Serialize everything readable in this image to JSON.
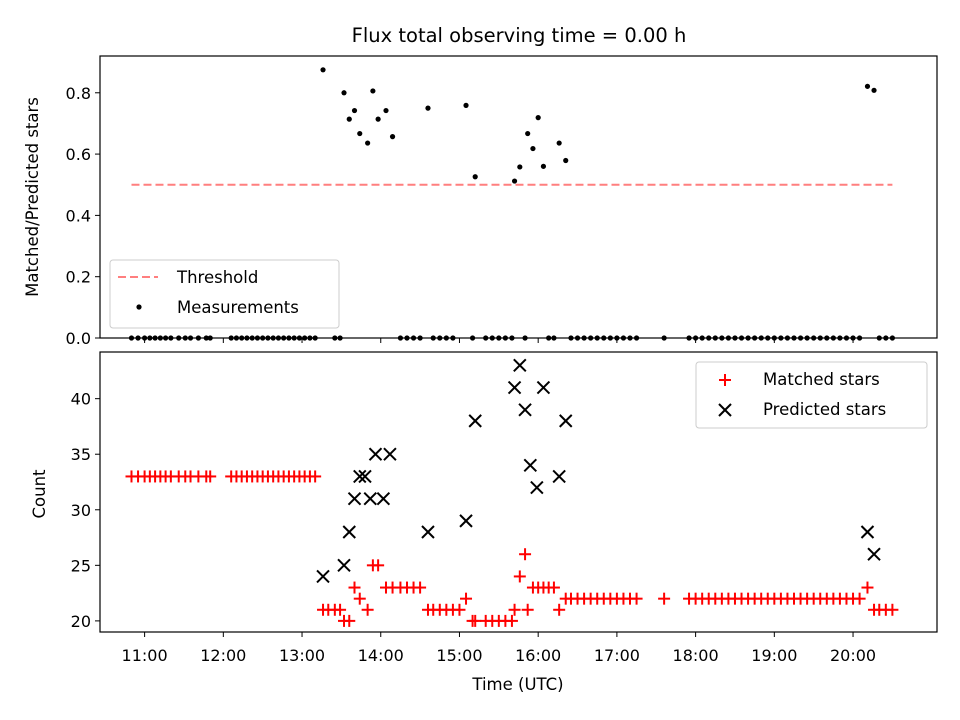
{
  "title": "Flux total observing time = 0.00 h",
  "chart_data": [
    {
      "type": "scatter",
      "panel": "top",
      "ylabel": "Matched/Predicted stars",
      "xlabel": "",
      "ylim": [
        0.0,
        0.92
      ],
      "xlim": [
        "10:26",
        "21:04"
      ],
      "yticks": [
        "0.0",
        "0.2",
        "0.4",
        "0.6",
        "0.8"
      ],
      "legend_position": "lower-left",
      "legend": [
        {
          "label": "Threshold",
          "color": "#ff7f7f",
          "marker": "dashed-line"
        },
        {
          "label": "Measurements",
          "color": "#000000",
          "marker": "dot"
        }
      ],
      "threshold": {
        "name": "Threshold",
        "y": 0.5,
        "x_from": "10:50",
        "x_to": "20:30",
        "color": "#ff7f7f"
      },
      "series": [
        {
          "name": "Measurements",
          "color": "#000000",
          "points": [
            [
              "10:50",
              0.0
            ],
            [
              "10:55",
              0.0
            ],
            [
              "11:00",
              0.0
            ],
            [
              "11:04",
              0.0
            ],
            [
              "11:08",
              0.0
            ],
            [
              "11:12",
              0.0
            ],
            [
              "11:16",
              0.0
            ],
            [
              "11:20",
              0.0
            ],
            [
              "11:26",
              0.0
            ],
            [
              "11:31",
              0.0
            ],
            [
              "11:35",
              0.0
            ],
            [
              "11:41",
              0.0
            ],
            [
              "11:47",
              0.0
            ],
            [
              "11:50",
              0.0
            ],
            [
              "12:06",
              0.0
            ],
            [
              "12:10",
              0.0
            ],
            [
              "12:14",
              0.0
            ],
            [
              "12:18",
              0.0
            ],
            [
              "12:22",
              0.0
            ],
            [
              "12:26",
              0.0
            ],
            [
              "12:30",
              0.0
            ],
            [
              "12:34",
              0.0
            ],
            [
              "12:38",
              0.0
            ],
            [
              "12:42",
              0.0
            ],
            [
              "12:46",
              0.0
            ],
            [
              "12:50",
              0.0
            ],
            [
              "12:54",
              0.0
            ],
            [
              "12:58",
              0.0
            ],
            [
              "13:02",
              0.0
            ],
            [
              "13:06",
              0.0
            ],
            [
              "13:10",
              0.0
            ],
            [
              "13:16",
              0.875
            ],
            [
              "13:25",
              0.0
            ],
            [
              "13:29",
              0.0
            ],
            [
              "13:32",
              0.8
            ],
            [
              "13:36",
              0.714
            ],
            [
              "13:40",
              0.742
            ],
            [
              "13:44",
              0.667
            ],
            [
              "13:50",
              0.636
            ],
            [
              "13:54",
              0.806
            ],
            [
              "13:58",
              0.714
            ],
            [
              "14:04",
              0.742
            ],
            [
              "14:09",
              0.657
            ],
            [
              "14:15",
              0.0
            ],
            [
              "14:20",
              0.0
            ],
            [
              "14:25",
              0.0
            ],
            [
              "14:30",
              0.0
            ],
            [
              "14:36",
              0.75
            ],
            [
              "14:40",
              0.0
            ],
            [
              "14:45",
              0.0
            ],
            [
              "14:50",
              0.0
            ],
            [
              "14:55",
              0.0
            ],
            [
              "15:05",
              0.759
            ],
            [
              "15:10",
              0.0
            ],
            [
              "15:12",
              0.526
            ],
            [
              "15:20",
              0.0
            ],
            [
              "15:25",
              0.0
            ],
            [
              "15:30",
              0.0
            ],
            [
              "15:35",
              0.0
            ],
            [
              "15:40",
              0.0
            ],
            [
              "15:42",
              0.512
            ],
            [
              "15:46",
              0.558
            ],
            [
              "15:50",
              0.0
            ],
            [
              "15:52",
              0.667
            ],
            [
              "15:56",
              0.618
            ],
            [
              "16:00",
              0.719
            ],
            [
              "16:04",
              0.56
            ],
            [
              "16:08",
              0.0
            ],
            [
              "16:12",
              0.0
            ],
            [
              "16:16",
              0.636
            ],
            [
              "16:21",
              0.579
            ],
            [
              "16:25",
              0.0
            ],
            [
              "16:30",
              0.0
            ],
            [
              "16:35",
              0.0
            ],
            [
              "16:40",
              0.0
            ],
            [
              "16:45",
              0.0
            ],
            [
              "16:50",
              0.0
            ],
            [
              "16:55",
              0.0
            ],
            [
              "17:00",
              0.0
            ],
            [
              "17:05",
              0.0
            ],
            [
              "17:10",
              0.0
            ],
            [
              "17:15",
              0.0
            ],
            [
              "17:36",
              0.0
            ],
            [
              "17:55",
              0.0
            ],
            [
              "18:00",
              0.0
            ],
            [
              "18:05",
              0.0
            ],
            [
              "18:10",
              0.0
            ],
            [
              "18:15",
              0.0
            ],
            [
              "18:20",
              0.0
            ],
            [
              "18:25",
              0.0
            ],
            [
              "18:30",
              0.0
            ],
            [
              "18:35",
              0.0
            ],
            [
              "18:40",
              0.0
            ],
            [
              "18:45",
              0.0
            ],
            [
              "18:50",
              0.0
            ],
            [
              "18:55",
              0.0
            ],
            [
              "19:00",
              0.0
            ],
            [
              "19:05",
              0.0
            ],
            [
              "19:10",
              0.0
            ],
            [
              "19:15",
              0.0
            ],
            [
              "19:20",
              0.0
            ],
            [
              "19:25",
              0.0
            ],
            [
              "19:30",
              0.0
            ],
            [
              "19:35",
              0.0
            ],
            [
              "19:40",
              0.0
            ],
            [
              "19:45",
              0.0
            ],
            [
              "19:50",
              0.0
            ],
            [
              "19:55",
              0.0
            ],
            [
              "20:00",
              0.0
            ],
            [
              "20:05",
              0.0
            ],
            [
              "20:11",
              0.821
            ],
            [
              "20:16",
              0.808
            ],
            [
              "20:20",
              0.0
            ],
            [
              "20:25",
              0.0
            ],
            [
              "20:30",
              0.0
            ]
          ]
        }
      ]
    },
    {
      "type": "scatter",
      "panel": "bottom",
      "ylabel": "Count",
      "xlabel": "Time (UTC)",
      "ylim": [
        19,
        44.2
      ],
      "xlim": [
        "10:26",
        "21:04"
      ],
      "yticks": [
        "20",
        "25",
        "30",
        "35",
        "40"
      ],
      "xticks": [
        "11:00",
        "12:00",
        "13:00",
        "14:00",
        "15:00",
        "16:00",
        "17:00",
        "18:00",
        "19:00",
        "20:00"
      ],
      "legend_position": "top-right",
      "legend": [
        {
          "label": "Matched stars",
          "color": "#ff0000",
          "marker": "plus"
        },
        {
          "label": "Predicted stars",
          "color": "#000000",
          "marker": "x"
        }
      ],
      "series": [
        {
          "name": "Matched stars",
          "color": "#ff0000",
          "points": [
            [
              "10:50",
              33
            ],
            [
              "10:55",
              33
            ],
            [
              "11:00",
              33
            ],
            [
              "11:04",
              33
            ],
            [
              "11:08",
              33
            ],
            [
              "11:12",
              33
            ],
            [
              "11:16",
              33
            ],
            [
              "11:20",
              33
            ],
            [
              "11:26",
              33
            ],
            [
              "11:31",
              33
            ],
            [
              "11:35",
              33
            ],
            [
              "11:41",
              33
            ],
            [
              "11:47",
              33
            ],
            [
              "11:50",
              33
            ],
            [
              "12:06",
              33
            ],
            [
              "12:10",
              33
            ],
            [
              "12:14",
              33
            ],
            [
              "12:18",
              33
            ],
            [
              "12:22",
              33
            ],
            [
              "12:26",
              33
            ],
            [
              "12:30",
              33
            ],
            [
              "12:34",
              33
            ],
            [
              "12:38",
              33
            ],
            [
              "12:42",
              33
            ],
            [
              "12:46",
              33
            ],
            [
              "12:50",
              33
            ],
            [
              "12:54",
              33
            ],
            [
              "12:58",
              33
            ],
            [
              "13:02",
              33
            ],
            [
              "13:06",
              33
            ],
            [
              "13:10",
              33
            ],
            [
              "13:16",
              21
            ],
            [
              "13:20",
              21
            ],
            [
              "13:25",
              21
            ],
            [
              "13:29",
              21
            ],
            [
              "13:32",
              20
            ],
            [
              "13:36",
              20
            ],
            [
              "13:40",
              23
            ],
            [
              "13:44",
              22
            ],
            [
              "13:50",
              21
            ],
            [
              "13:54",
              25
            ],
            [
              "13:58",
              25
            ],
            [
              "14:04",
              23
            ],
            [
              "14:09",
              23
            ],
            [
              "14:15",
              23
            ],
            [
              "14:20",
              23
            ],
            [
              "14:25",
              23
            ],
            [
              "14:30",
              23
            ],
            [
              "14:36",
              21
            ],
            [
              "14:40",
              21
            ],
            [
              "14:45",
              21
            ],
            [
              "14:50",
              21
            ],
            [
              "14:55",
              21
            ],
            [
              "15:00",
              21
            ],
            [
              "15:05",
              22
            ],
            [
              "15:10",
              20
            ],
            [
              "15:12",
              20
            ],
            [
              "15:20",
              20
            ],
            [
              "15:25",
              20
            ],
            [
              "15:30",
              20
            ],
            [
              "15:35",
              20
            ],
            [
              "15:40",
              20
            ],
            [
              "15:42",
              21
            ],
            [
              "15:46",
              24
            ],
            [
              "15:50",
              26
            ],
            [
              "15:52",
              21
            ],
            [
              "15:56",
              23
            ],
            [
              "16:00",
              23
            ],
            [
              "16:04",
              23
            ],
            [
              "16:08",
              23
            ],
            [
              "16:12",
              23
            ],
            [
              "16:16",
              21
            ],
            [
              "16:21",
              22
            ],
            [
              "16:25",
              22
            ],
            [
              "16:30",
              22
            ],
            [
              "16:35",
              22
            ],
            [
              "16:40",
              22
            ],
            [
              "16:45",
              22
            ],
            [
              "16:50",
              22
            ],
            [
              "16:55",
              22
            ],
            [
              "17:00",
              22
            ],
            [
              "17:05",
              22
            ],
            [
              "17:10",
              22
            ],
            [
              "17:15",
              22
            ],
            [
              "17:36",
              22
            ],
            [
              "17:55",
              22
            ],
            [
              "18:00",
              22
            ],
            [
              "18:05",
              22
            ],
            [
              "18:10",
              22
            ],
            [
              "18:15",
              22
            ],
            [
              "18:20",
              22
            ],
            [
              "18:25",
              22
            ],
            [
              "18:30",
              22
            ],
            [
              "18:35",
              22
            ],
            [
              "18:40",
              22
            ],
            [
              "18:45",
              22
            ],
            [
              "18:50",
              22
            ],
            [
              "18:55",
              22
            ],
            [
              "19:00",
              22
            ],
            [
              "19:05",
              22
            ],
            [
              "19:10",
              22
            ],
            [
              "19:15",
              22
            ],
            [
              "19:20",
              22
            ],
            [
              "19:25",
              22
            ],
            [
              "19:30",
              22
            ],
            [
              "19:35",
              22
            ],
            [
              "19:40",
              22
            ],
            [
              "19:45",
              22
            ],
            [
              "19:50",
              22
            ],
            [
              "19:55",
              22
            ],
            [
              "20:00",
              22
            ],
            [
              "20:05",
              22
            ],
            [
              "20:11",
              23
            ],
            [
              "20:16",
              21
            ],
            [
              "20:20",
              21
            ],
            [
              "20:25",
              21
            ],
            [
              "20:30",
              21
            ]
          ]
        },
        {
          "name": "Predicted stars",
          "color": "#000000",
          "points": [
            [
              "13:16",
              24
            ],
            [
              "13:32",
              25
            ],
            [
              "13:36",
              28
            ],
            [
              "13:40",
              31
            ],
            [
              "13:44",
              33
            ],
            [
              "13:48",
              33
            ],
            [
              "13:52",
              31
            ],
            [
              "13:56",
              35
            ],
            [
              "14:02",
              31
            ],
            [
              "14:07",
              35
            ],
            [
              "14:36",
              28
            ],
            [
              "15:05",
              29
            ],
            [
              "15:12",
              38
            ],
            [
              "15:42",
              41
            ],
            [
              "15:46",
              43
            ],
            [
              "15:50",
              39
            ],
            [
              "15:54",
              34
            ],
            [
              "15:59",
              32
            ],
            [
              "16:04",
              41
            ],
            [
              "16:16",
              33
            ],
            [
              "16:21",
              38
            ],
            [
              "20:11",
              28
            ],
            [
              "20:16",
              26
            ]
          ]
        }
      ]
    }
  ]
}
